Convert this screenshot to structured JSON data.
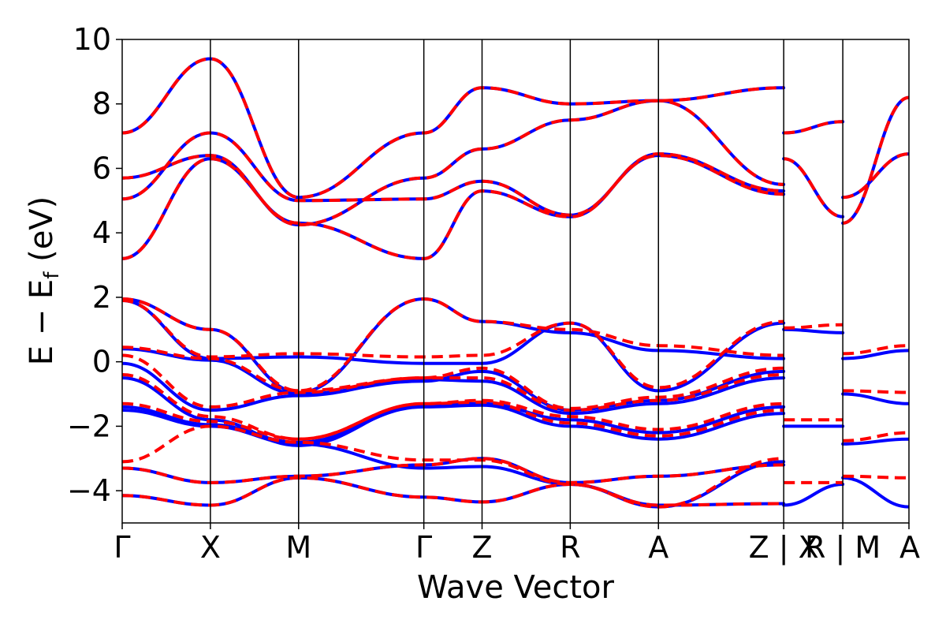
{
  "chart_data": {
    "type": "line",
    "xlabel": "Wave Vector",
    "ylabel_main": "E − E",
    "ylabel_sub": "f",
    "ylabel_unit": " (eV)",
    "ylim": [
      -5,
      10
    ],
    "yticks": [
      -4,
      -2,
      0,
      2,
      4,
      6,
      8,
      10
    ],
    "ytick_labels": [
      "−4",
      "−2",
      "0",
      "2",
      "4",
      "6",
      "8",
      "10"
    ],
    "xlim": [
      0,
      8.92
    ],
    "kpoints": [
      {
        "x": 0.0,
        "label": "Γ"
      },
      {
        "x": 1.0,
        "label": "X"
      },
      {
        "x": 2.0,
        "label": "M"
      },
      {
        "x": 3.42,
        "label": "Γ"
      },
      {
        "x": 4.08,
        "label": "Z"
      },
      {
        "x": 5.08,
        "label": "R"
      },
      {
        "x": 6.08,
        "label": "A"
      },
      {
        "x": 7.5,
        "label": "Z | X"
      },
      {
        "x": 8.17,
        "label": "R | M"
      },
      {
        "x": 8.92,
        "label": "A"
      }
    ],
    "series_colors": [
      "#0000ff",
      "#ff0000"
    ],
    "series": [
      {
        "bands": [
          {
            "x": [
              0,
              1,
              2,
              3.42,
              4.08,
              5.08,
              6.08,
              7.5
            ],
            "y": [
              3.2,
              6.3,
              4.3,
              3.2,
              5.3,
              4.5,
              6.45,
              5.3
            ]
          },
          {
            "x": [
              0,
              1,
              2,
              3.42,
              4.08,
              5.08,
              6.08,
              7.5
            ],
            "y": [
              5.05,
              7.1,
              5.0,
              5.05,
              5.6,
              4.55,
              6.4,
              5.2
            ]
          },
          {
            "x": [
              0,
              1,
              2,
              3.42,
              4.08,
              5.08,
              6.08,
              7.5
            ],
            "y": [
              5.7,
              6.4,
              4.25,
              5.7,
              6.6,
              7.5,
              8.1,
              5.5
            ]
          },
          {
            "x": [
              0,
              1,
              2,
              3.42,
              4.08,
              5.08,
              6.08,
              7.5
            ],
            "y": [
              7.1,
              9.4,
              5.1,
              7.1,
              8.5,
              8.0,
              8.1,
              8.5
            ]
          },
          {
            "x": [
              0,
              1,
              2,
              3.42,
              4.08,
              5.08,
              6.08,
              7.5
            ],
            "y": [
              1.95,
              1.0,
              -0.95,
              1.95,
              1.25,
              0.9,
              0.35,
              0.1
            ]
          },
          {
            "x": [
              0,
              1,
              2,
              3.42,
              4.08,
              5.08,
              6.08,
              7.5
            ],
            "y": [
              1.9,
              0.1,
              0.15,
              -0.05,
              -0.05,
              1.2,
              -0.9,
              1.2
            ]
          },
          {
            "x": [
              0,
              1,
              2,
              3.42,
              4.08,
              5.08,
              6.08,
              7.5
            ],
            "y": [
              0.4,
              0.05,
              -1.0,
              -0.6,
              -0.3,
              -1.5,
              -1.2,
              -0.3
            ]
          },
          {
            "x": [
              0,
              1,
              2,
              3.42,
              4.08,
              5.08,
              6.08,
              7.5
            ],
            "y": [
              -0.05,
              -1.5,
              -1.05,
              -0.55,
              -0.6,
              -1.6,
              -1.3,
              -0.5
            ]
          },
          {
            "x": [
              0,
              1,
              2,
              3.42,
              4.08,
              5.08,
              6.08,
              7.5
            ],
            "y": [
              -0.5,
              -1.8,
              -2.6,
              -1.35,
              -1.3,
              -1.8,
              -2.2,
              -1.4
            ]
          },
          {
            "x": [
              0,
              1,
              2,
              3.42,
              4.08,
              5.08,
              6.08,
              7.5
            ],
            "y": [
              -1.4,
              -1.95,
              -2.5,
              -1.4,
              -1.35,
              -2.0,
              -2.4,
              -1.6
            ]
          },
          {
            "x": [
              0,
              1,
              2,
              3.42,
              4.08,
              5.08,
              6.08,
              7.5
            ],
            "y": [
              -1.5,
              -2.0,
              -2.55,
              -3.3,
              -3.25,
              -3.8,
              -4.5,
              -3.1
            ]
          },
          {
            "x": [
              0,
              1,
              2,
              3.42,
              4.08,
              5.08,
              6.08,
              7.5
            ],
            "y": [
              -3.3,
              -3.75,
              -3.55,
              -3.2,
              -3.0,
              -3.75,
              -3.55,
              -3.2
            ]
          },
          {
            "x": [
              0,
              1,
              2,
              3.42,
              4.08,
              5.08,
              6.08,
              7.5
            ],
            "y": [
              -4.15,
              -4.45,
              -3.6,
              -4.2,
              -4.35,
              -3.8,
              -4.45,
              -4.4
            ]
          },
          {
            "x": [
              7.5,
              8.17
            ],
            "y": [
              1.0,
              0.9
            ]
          },
          {
            "x": [
              7.5,
              8.17
            ],
            "y": [
              -2.0,
              -2.0
            ]
          },
          {
            "x": [
              7.5,
              8.17
            ],
            "y": [
              -4.45,
              -3.8
            ]
          },
          {
            "x": [
              7.5,
              8.17
            ],
            "y": [
              7.1,
              7.45
            ]
          },
          {
            "x": [
              7.5,
              8.17
            ],
            "y": [
              6.3,
              4.5
            ]
          },
          {
            "x": [
              8.17,
              8.92
            ],
            "y": [
              0.1,
              0.35
            ]
          },
          {
            "x": [
              8.17,
              8.92
            ],
            "y": [
              -1.0,
              -1.3
            ]
          },
          {
            "x": [
              8.17,
              8.92
            ],
            "y": [
              -2.55,
              -2.4
            ]
          },
          {
            "x": [
              8.17,
              8.92
            ],
            "y": [
              -3.6,
              -4.5
            ]
          },
          {
            "x": [
              8.17,
              8.92
            ],
            "y": [
              4.3,
              8.2
            ]
          },
          {
            "x": [
              8.17,
              8.92
            ],
            "y": [
              5.1,
              6.45
            ]
          }
        ]
      },
      {
        "bands": [
          {
            "x": [
              0,
              1,
              2,
              3.42,
              4.08,
              5.08,
              6.08,
              7.5
            ],
            "y": [
              3.2,
              6.3,
              4.3,
              3.2,
              5.3,
              4.5,
              6.45,
              5.3
            ]
          },
          {
            "x": [
              0,
              1,
              2,
              3.42,
              4.08,
              5.08,
              6.08,
              7.5
            ],
            "y": [
              5.05,
              7.1,
              5.0,
              5.05,
              5.6,
              4.55,
              6.4,
              5.2
            ]
          },
          {
            "x": [
              0,
              1,
              2,
              3.42,
              4.08,
              5.08,
              6.08,
              7.5
            ],
            "y": [
              5.7,
              6.4,
              4.25,
              5.7,
              6.6,
              7.5,
              8.1,
              5.5
            ]
          },
          {
            "x": [
              0,
              1,
              2,
              3.42,
              4.08,
              5.08,
              6.08,
              7.5
            ],
            "y": [
              7.1,
              9.4,
              5.1,
              7.1,
              8.5,
              8.0,
              8.1,
              8.5
            ]
          },
          {
            "x": [
              0,
              1,
              2,
              3.42,
              4.08,
              5.08,
              6.08,
              7.5
            ],
            "y": [
              1.95,
              1.0,
              -0.9,
              1.95,
              1.25,
              1.0,
              0.5,
              0.2
            ]
          },
          {
            "x": [
              0,
              1,
              2,
              3.42,
              4.08,
              5.08,
              6.08,
              7.5
            ],
            "y": [
              1.9,
              0.15,
              0.25,
              0.15,
              0.2,
              1.2,
              -0.8,
              1.25
            ]
          },
          {
            "x": [
              0,
              1,
              2,
              3.42,
              4.08,
              5.08,
              6.08,
              7.5
            ],
            "y": [
              0.45,
              0.1,
              -0.9,
              -0.5,
              -0.2,
              -1.45,
              -1.1,
              -0.2
            ]
          },
          {
            "x": [
              0,
              1,
              2,
              3.42,
              4.08,
              5.08,
              6.08,
              7.5
            ],
            "y": [
              0.2,
              -1.4,
              -0.95,
              -0.5,
              -0.5,
              -1.5,
              -1.2,
              -0.4
            ]
          },
          {
            "x": [
              0,
              1,
              2,
              3.42,
              4.08,
              5.08,
              6.08,
              7.5
            ],
            "y": [
              -0.4,
              -1.7,
              -2.4,
              -1.3,
              -1.2,
              -1.7,
              -2.1,
              -1.3
            ]
          },
          {
            "x": [
              0,
              1,
              2,
              3.42,
              4.08,
              5.08,
              6.08,
              7.5
            ],
            "y": [
              -1.3,
              -1.85,
              -2.4,
              -1.3,
              -1.25,
              -1.9,
              -2.3,
              -1.5
            ]
          },
          {
            "x": [
              0,
              1,
              2,
              3.42,
              4.08,
              5.08,
              6.08,
              7.5
            ],
            "y": [
              -3.1,
              -2.0,
              -2.5,
              -3.05,
              -3.05,
              -3.8,
              -4.5,
              -3.0
            ]
          },
          {
            "x": [
              0,
              1,
              2,
              3.42,
              4.08,
              5.08,
              6.08,
              7.5
            ],
            "y": [
              -3.3,
              -3.75,
              -3.55,
              -3.2,
              -3.0,
              -3.75,
              -3.55,
              -3.2
            ]
          },
          {
            "x": [
              0,
              1,
              2,
              3.42,
              4.08,
              5.08,
              6.08,
              7.5
            ],
            "y": [
              -4.15,
              -4.45,
              -3.6,
              -4.2,
              -4.35,
              -3.8,
              -4.45,
              -4.4
            ]
          },
          {
            "x": [
              7.5,
              8.17
            ],
            "y": [
              1.05,
              1.15
            ]
          },
          {
            "x": [
              7.5,
              8.17
            ],
            "y": [
              -1.8,
              -1.8
            ]
          },
          {
            "x": [
              7.5,
              8.17
            ],
            "y": [
              -3.75,
              -3.75
            ]
          },
          {
            "x": [
              7.5,
              8.17
            ],
            "y": [
              7.1,
              7.45
            ]
          },
          {
            "x": [
              7.5,
              8.17
            ],
            "y": [
              6.3,
              4.5
            ]
          },
          {
            "x": [
              8.17,
              8.92
            ],
            "y": [
              0.25,
              0.5
            ]
          },
          {
            "x": [
              8.17,
              8.92
            ],
            "y": [
              -0.9,
              -0.95
            ]
          },
          {
            "x": [
              8.17,
              8.92
            ],
            "y": [
              -2.45,
              -2.2
            ]
          },
          {
            "x": [
              8.17,
              8.92
            ],
            "y": [
              -3.55,
              -3.6
            ]
          },
          {
            "x": [
              8.17,
              8.92
            ],
            "y": [
              4.3,
              8.2
            ]
          },
          {
            "x": [
              8.17,
              8.92
            ],
            "y": [
              5.1,
              6.45
            ]
          }
        ]
      }
    ],
    "grid": false,
    "legend": "none"
  }
}
